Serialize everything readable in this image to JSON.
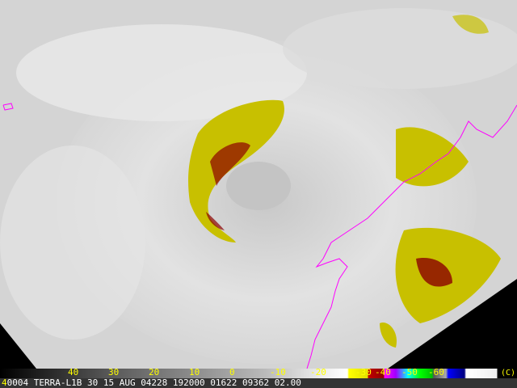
{
  "image": {
    "subject": "satellite-infrared-cloud-image"
  },
  "colorbar": {
    "labels": [
      "40",
      "30",
      "20",
      "10",
      "0",
      "-10",
      "-20",
      "-30",
      "-40",
      "-50",
      "-60"
    ],
    "copyright": "(C)"
  },
  "info_line": {
    "prefix": "4",
    "text": "0004 TERRA-L1B 30 15 AUG 04228 192000 01622 09362 02.00"
  },
  "colors": {
    "coastline": "#ff00ff",
    "label": "#ffff00",
    "cold_cloud": "#c8c000",
    "coldest_cloud": "#8b0000"
  }
}
